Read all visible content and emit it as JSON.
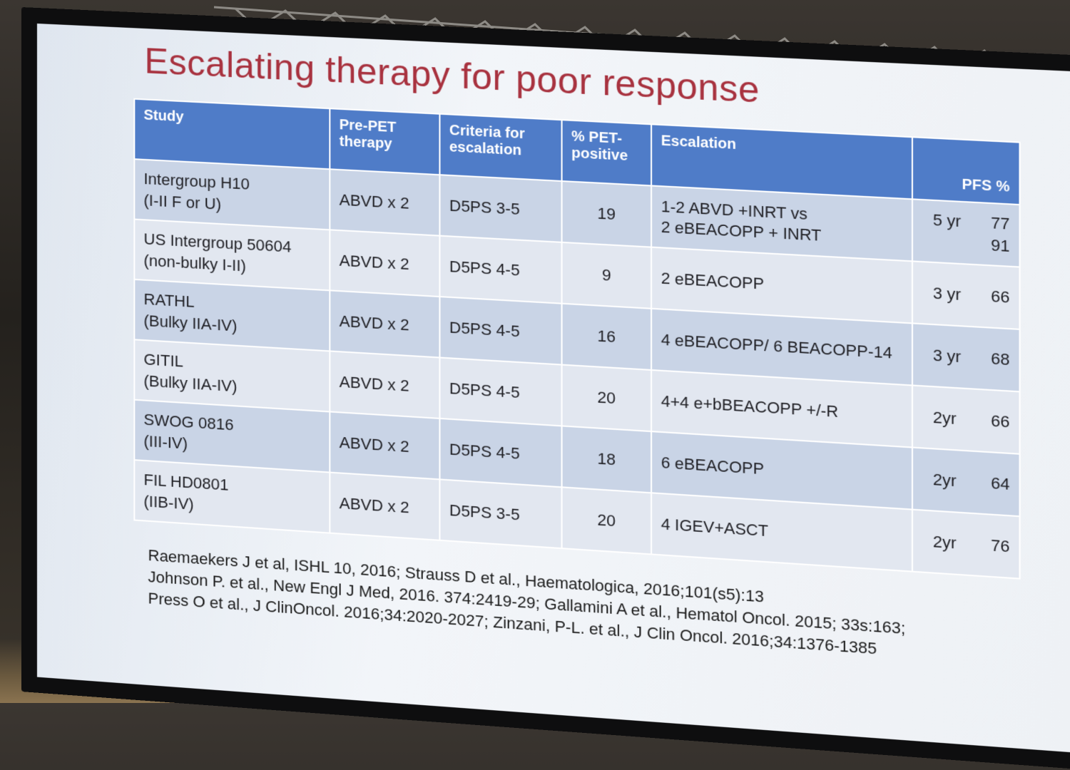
{
  "slide": {
    "title": "Escalating therapy for poor response"
  },
  "table": {
    "headers": {
      "study": "Study",
      "pre_pet": "Pre-PET therapy",
      "criteria": "Criteria for escalation",
      "pct_pet": "% PET-positive",
      "escalation": "Escalation",
      "pfs": "PFS %"
    },
    "rows": [
      {
        "study_line1": "Intergroup H10",
        "study_line2": "(I-II F or U)",
        "pre_pet": "ABVD x 2",
        "criteria": "D5PS 3-5",
        "pct_pet": "19",
        "escalation_line1": "1-2 ABVD +INRT vs",
        "escalation_line2": "2 eBEACOPP + INRT",
        "pfs_years": "5 yr",
        "pfs_value1": "77",
        "pfs_value2": "91"
      },
      {
        "study_line1": "US Intergroup 50604",
        "study_line2": "(non-bulky I-II)",
        "pre_pet": "ABVD x 2",
        "criteria": "D5PS 4-5",
        "pct_pet": "9",
        "escalation_line1": "2 eBEACOPP",
        "escalation_line2": "",
        "pfs_years": "3 yr",
        "pfs_value1": "66",
        "pfs_value2": ""
      },
      {
        "study_line1": "RATHL",
        "study_line2": "(Bulky IIA-IV)",
        "pre_pet": "ABVD x 2",
        "criteria": "D5PS 4-5",
        "pct_pet": "16",
        "escalation_line1": "4 eBEACOPP/ 6 BEACOPP-14",
        "escalation_line2": "",
        "pfs_years": "3 yr",
        "pfs_value1": "68",
        "pfs_value2": ""
      },
      {
        "study_line1": "GITIL",
        "study_line2": "(Bulky IIA-IV)",
        "pre_pet": "ABVD x 2",
        "criteria": "D5PS 4-5",
        "pct_pet": "20",
        "escalation_line1": "4+4 e+bBEACOPP +/-R",
        "escalation_line2": "",
        "pfs_years": "2yr",
        "pfs_value1": "66",
        "pfs_value2": ""
      },
      {
        "study_line1": "SWOG 0816",
        "study_line2": "(III-IV)",
        "pre_pet": "ABVD x 2",
        "criteria": "D5PS 4-5",
        "pct_pet": "18",
        "escalation_line1": "6 eBEACOPP",
        "escalation_line2": "",
        "pfs_years": "2yr",
        "pfs_value1": "64",
        "pfs_value2": ""
      },
      {
        "study_line1": "FIL HD0801",
        "study_line2": "(IIB-IV)",
        "pre_pet": "ABVD x 2",
        "criteria": "D5PS 3-5",
        "pct_pet": "20",
        "escalation_line1": "4 IGEV+ASCT",
        "escalation_line2": "",
        "pfs_years": "2yr",
        "pfs_value1": "76",
        "pfs_value2": ""
      }
    ]
  },
  "references": [
    "Raemaekers J et al, ISHL 10, 2016;  Strauss D et al., Haematologica, 2016;101(s5):13",
    "Johnson P. et al., New Engl J Med, 2016. 374:2419-29; Gallamini A et al., Hematol Oncol. 2015; 33s:163;",
    "Press O et al., J ClinOncol. 2016;34:2020-2027; Zinzani, P-L. et al., J Clin Oncol. 2016;34:1376-1385"
  ],
  "colors": {
    "title": "#a8323f",
    "header_bg": "#4f7cc8",
    "row_dark": "#c9d4e6",
    "row_light": "#e2e7f0"
  }
}
